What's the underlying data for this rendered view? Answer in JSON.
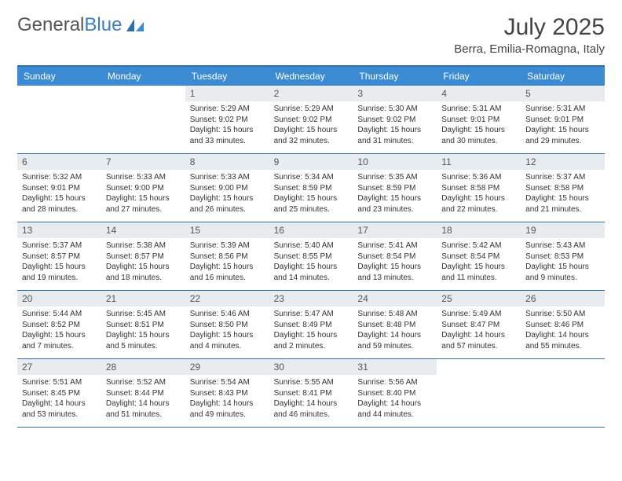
{
  "logo": {
    "text1": "General",
    "text2": "Blue"
  },
  "title": "July 2025",
  "location": "Berra, Emilia-Romagna, Italy",
  "colors": {
    "header_bar": "#3b8bd4",
    "border": "#2f6fa8",
    "day_bar": "#e8ecef",
    "logo_blue": "#3b7fc4"
  },
  "weekdays": [
    "Sunday",
    "Monday",
    "Tuesday",
    "Wednesday",
    "Thursday",
    "Friday",
    "Saturday"
  ],
  "weeks": [
    [
      null,
      null,
      {
        "n": "1",
        "sunrise": "Sunrise: 5:29 AM",
        "sunset": "Sunset: 9:02 PM",
        "day1": "Daylight: 15 hours",
        "day2": "and 33 minutes."
      },
      {
        "n": "2",
        "sunrise": "Sunrise: 5:29 AM",
        "sunset": "Sunset: 9:02 PM",
        "day1": "Daylight: 15 hours",
        "day2": "and 32 minutes."
      },
      {
        "n": "3",
        "sunrise": "Sunrise: 5:30 AM",
        "sunset": "Sunset: 9:02 PM",
        "day1": "Daylight: 15 hours",
        "day2": "and 31 minutes."
      },
      {
        "n": "4",
        "sunrise": "Sunrise: 5:31 AM",
        "sunset": "Sunset: 9:01 PM",
        "day1": "Daylight: 15 hours",
        "day2": "and 30 minutes."
      },
      {
        "n": "5",
        "sunrise": "Sunrise: 5:31 AM",
        "sunset": "Sunset: 9:01 PM",
        "day1": "Daylight: 15 hours",
        "day2": "and 29 minutes."
      }
    ],
    [
      {
        "n": "6",
        "sunrise": "Sunrise: 5:32 AM",
        "sunset": "Sunset: 9:01 PM",
        "day1": "Daylight: 15 hours",
        "day2": "and 28 minutes."
      },
      {
        "n": "7",
        "sunrise": "Sunrise: 5:33 AM",
        "sunset": "Sunset: 9:00 PM",
        "day1": "Daylight: 15 hours",
        "day2": "and 27 minutes."
      },
      {
        "n": "8",
        "sunrise": "Sunrise: 5:33 AM",
        "sunset": "Sunset: 9:00 PM",
        "day1": "Daylight: 15 hours",
        "day2": "and 26 minutes."
      },
      {
        "n": "9",
        "sunrise": "Sunrise: 5:34 AM",
        "sunset": "Sunset: 8:59 PM",
        "day1": "Daylight: 15 hours",
        "day2": "and 25 minutes."
      },
      {
        "n": "10",
        "sunrise": "Sunrise: 5:35 AM",
        "sunset": "Sunset: 8:59 PM",
        "day1": "Daylight: 15 hours",
        "day2": "and 23 minutes."
      },
      {
        "n": "11",
        "sunrise": "Sunrise: 5:36 AM",
        "sunset": "Sunset: 8:58 PM",
        "day1": "Daylight: 15 hours",
        "day2": "and 22 minutes."
      },
      {
        "n": "12",
        "sunrise": "Sunrise: 5:37 AM",
        "sunset": "Sunset: 8:58 PM",
        "day1": "Daylight: 15 hours",
        "day2": "and 21 minutes."
      }
    ],
    [
      {
        "n": "13",
        "sunrise": "Sunrise: 5:37 AM",
        "sunset": "Sunset: 8:57 PM",
        "day1": "Daylight: 15 hours",
        "day2": "and 19 minutes."
      },
      {
        "n": "14",
        "sunrise": "Sunrise: 5:38 AM",
        "sunset": "Sunset: 8:57 PM",
        "day1": "Daylight: 15 hours",
        "day2": "and 18 minutes."
      },
      {
        "n": "15",
        "sunrise": "Sunrise: 5:39 AM",
        "sunset": "Sunset: 8:56 PM",
        "day1": "Daylight: 15 hours",
        "day2": "and 16 minutes."
      },
      {
        "n": "16",
        "sunrise": "Sunrise: 5:40 AM",
        "sunset": "Sunset: 8:55 PM",
        "day1": "Daylight: 15 hours",
        "day2": "and 14 minutes."
      },
      {
        "n": "17",
        "sunrise": "Sunrise: 5:41 AM",
        "sunset": "Sunset: 8:54 PM",
        "day1": "Daylight: 15 hours",
        "day2": "and 13 minutes."
      },
      {
        "n": "18",
        "sunrise": "Sunrise: 5:42 AM",
        "sunset": "Sunset: 8:54 PM",
        "day1": "Daylight: 15 hours",
        "day2": "and 11 minutes."
      },
      {
        "n": "19",
        "sunrise": "Sunrise: 5:43 AM",
        "sunset": "Sunset: 8:53 PM",
        "day1": "Daylight: 15 hours",
        "day2": "and 9 minutes."
      }
    ],
    [
      {
        "n": "20",
        "sunrise": "Sunrise: 5:44 AM",
        "sunset": "Sunset: 8:52 PM",
        "day1": "Daylight: 15 hours",
        "day2": "and 7 minutes."
      },
      {
        "n": "21",
        "sunrise": "Sunrise: 5:45 AM",
        "sunset": "Sunset: 8:51 PM",
        "day1": "Daylight: 15 hours",
        "day2": "and 5 minutes."
      },
      {
        "n": "22",
        "sunrise": "Sunrise: 5:46 AM",
        "sunset": "Sunset: 8:50 PM",
        "day1": "Daylight: 15 hours",
        "day2": "and 4 minutes."
      },
      {
        "n": "23",
        "sunrise": "Sunrise: 5:47 AM",
        "sunset": "Sunset: 8:49 PM",
        "day1": "Daylight: 15 hours",
        "day2": "and 2 minutes."
      },
      {
        "n": "24",
        "sunrise": "Sunrise: 5:48 AM",
        "sunset": "Sunset: 8:48 PM",
        "day1": "Daylight: 14 hours",
        "day2": "and 59 minutes."
      },
      {
        "n": "25",
        "sunrise": "Sunrise: 5:49 AM",
        "sunset": "Sunset: 8:47 PM",
        "day1": "Daylight: 14 hours",
        "day2": "and 57 minutes."
      },
      {
        "n": "26",
        "sunrise": "Sunrise: 5:50 AM",
        "sunset": "Sunset: 8:46 PM",
        "day1": "Daylight: 14 hours",
        "day2": "and 55 minutes."
      }
    ],
    [
      {
        "n": "27",
        "sunrise": "Sunrise: 5:51 AM",
        "sunset": "Sunset: 8:45 PM",
        "day1": "Daylight: 14 hours",
        "day2": "and 53 minutes."
      },
      {
        "n": "28",
        "sunrise": "Sunrise: 5:52 AM",
        "sunset": "Sunset: 8:44 PM",
        "day1": "Daylight: 14 hours",
        "day2": "and 51 minutes."
      },
      {
        "n": "29",
        "sunrise": "Sunrise: 5:54 AM",
        "sunset": "Sunset: 8:43 PM",
        "day1": "Daylight: 14 hours",
        "day2": "and 49 minutes."
      },
      {
        "n": "30",
        "sunrise": "Sunrise: 5:55 AM",
        "sunset": "Sunset: 8:41 PM",
        "day1": "Daylight: 14 hours",
        "day2": "and 46 minutes."
      },
      {
        "n": "31",
        "sunrise": "Sunrise: 5:56 AM",
        "sunset": "Sunset: 8:40 PM",
        "day1": "Daylight: 14 hours",
        "day2": "and 44 minutes."
      },
      null,
      null
    ]
  ]
}
